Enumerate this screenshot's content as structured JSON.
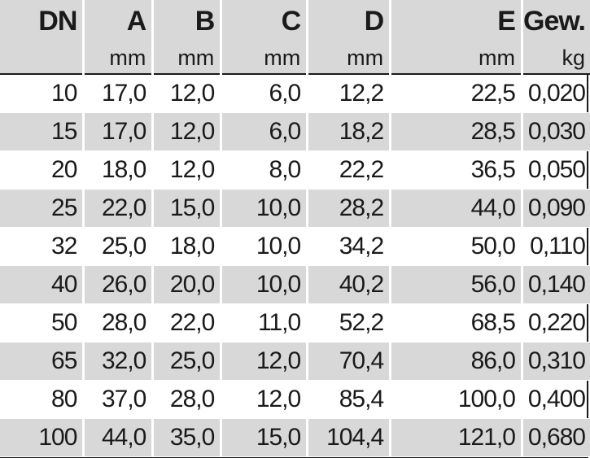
{
  "columns": [
    "DN",
    "A",
    "B",
    "C",
    "D",
    "E",
    "Gew."
  ],
  "units": [
    "",
    "mm",
    "mm",
    "mm",
    "mm",
    "mm",
    "kg"
  ],
  "rows": [
    [
      "10",
      "17,0",
      "12,0",
      "6,0",
      "12,2",
      "22,5",
      "0,020"
    ],
    [
      "15",
      "17,0",
      "12,0",
      "6,0",
      "18,2",
      "28,5",
      "0,030"
    ],
    [
      "20",
      "18,0",
      "12,0",
      "8,0",
      "22,2",
      "36,5",
      "0,050"
    ],
    [
      "25",
      "22,0",
      "15,0",
      "10,0",
      "28,2",
      "44,0",
      "0,090"
    ],
    [
      "32",
      "25,0",
      "18,0",
      "10,0",
      "34,2",
      "50,0",
      "0,110"
    ],
    [
      "40",
      "26,0",
      "20,0",
      "10,0",
      "40,2",
      "56,0",
      "0,140"
    ],
    [
      "50",
      "28,0",
      "22,0",
      "11,0",
      "52,2",
      "68,5",
      "0,220"
    ],
    [
      "65",
      "32,0",
      "25,0",
      "12,0",
      "70,4",
      "86,0",
      "0,310"
    ],
    [
      "80",
      "37,0",
      "28,0",
      "12,0",
      "85,4",
      "100,0",
      "0,400"
    ],
    [
      "100",
      "44,0",
      "35,0",
      "15,0",
      "104,4",
      "121,0",
      "0,680"
    ]
  ]
}
